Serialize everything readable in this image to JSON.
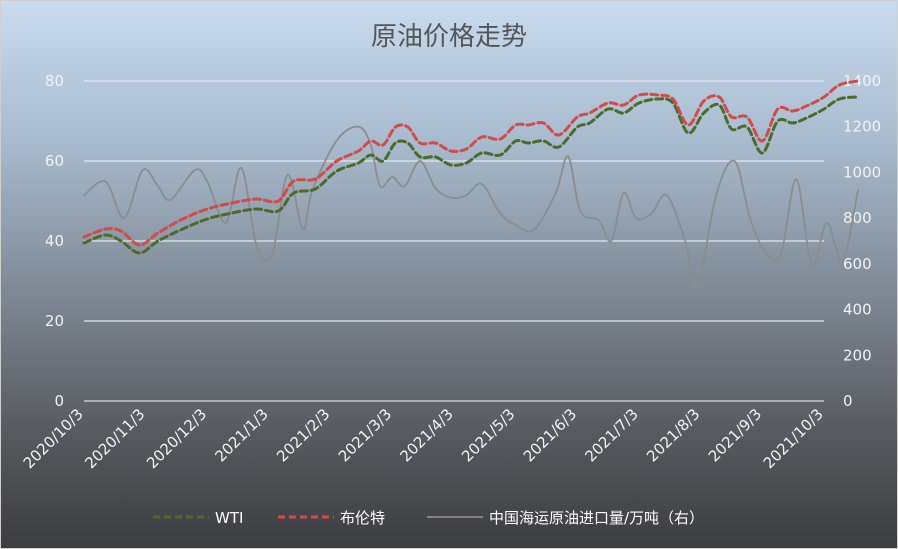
{
  "chart_data": {
    "type": "line",
    "title": "原油价格走势",
    "x_labels": [
      "2020/10/3",
      "2020/11/3",
      "2020/12/3",
      "2021/1/3",
      "2021/2/3",
      "2021/3/3",
      "2021/4/3",
      "2021/5/3",
      "2021/6/3",
      "2021/7/3",
      "2021/8/3",
      "2021/9/3",
      "2021/10/3"
    ],
    "y_left": {
      "ylim": [
        0,
        80
      ],
      "ticks": [
        0,
        20,
        40,
        60,
        80
      ]
    },
    "y_right": {
      "ylim": [
        0,
        1400
      ],
      "ticks": [
        0,
        200,
        400,
        600,
        800,
        1000,
        1200,
        1400
      ]
    },
    "grid": true,
    "legend_position": "bottom",
    "series": [
      {
        "name": "WTI",
        "axis": "left",
        "style": "dashed",
        "color": "#4a6b2a",
        "points": [
          [
            0,
            39.5
          ],
          [
            0.35,
            41.5
          ],
          [
            0.6,
            40
          ],
          [
            0.9,
            37
          ],
          [
            1.2,
            40
          ],
          [
            1.6,
            43
          ],
          [
            2,
            45.5
          ],
          [
            2.4,
            47
          ],
          [
            2.8,
            48
          ],
          [
            3.15,
            47.5
          ],
          [
            3.4,
            52
          ],
          [
            3.75,
            53
          ],
          [
            4.1,
            57.5
          ],
          [
            4.45,
            59.5
          ],
          [
            4.65,
            61.5
          ],
          [
            4.85,
            60
          ],
          [
            5.05,
            64.5
          ],
          [
            5.25,
            64.5
          ],
          [
            5.45,
            61
          ],
          [
            5.7,
            61
          ],
          [
            5.95,
            59
          ],
          [
            6.2,
            59.5
          ],
          [
            6.45,
            62
          ],
          [
            6.75,
            61.5
          ],
          [
            7,
            65
          ],
          [
            7.2,
            64.5
          ],
          [
            7.45,
            65
          ],
          [
            7.7,
            63.5
          ],
          [
            8,
            68.5
          ],
          [
            8.2,
            69.5
          ],
          [
            8.5,
            73
          ],
          [
            8.75,
            72
          ],
          [
            9,
            74.5
          ],
          [
            9.3,
            75.5
          ],
          [
            9.55,
            74.5
          ],
          [
            9.8,
            67
          ],
          [
            10.05,
            72
          ],
          [
            10.3,
            74
          ],
          [
            10.5,
            68
          ],
          [
            10.75,
            68.5
          ],
          [
            11,
            62
          ],
          [
            11.25,
            70
          ],
          [
            11.5,
            69.5
          ],
          [
            11.75,
            71
          ],
          [
            12,
            73
          ],
          [
            12.25,
            75.5
          ],
          [
            12.55,
            76
          ]
        ]
      },
      {
        "name": "布伦特",
        "axis": "left",
        "style": "dashed",
        "color": "#d24b4b",
        "points": [
          [
            0,
            41
          ],
          [
            0.35,
            43
          ],
          [
            0.6,
            42.5
          ],
          [
            0.9,
            39
          ],
          [
            1.2,
            42
          ],
          [
            1.6,
            45.5
          ],
          [
            2,
            48
          ],
          [
            2.4,
            49.5
          ],
          [
            2.8,
            50.5
          ],
          [
            3.15,
            50
          ],
          [
            3.4,
            55
          ],
          [
            3.75,
            55.5
          ],
          [
            4.1,
            60
          ],
          [
            4.45,
            62.5
          ],
          [
            4.65,
            65
          ],
          [
            4.85,
            64
          ],
          [
            5.05,
            68.5
          ],
          [
            5.25,
            68.5
          ],
          [
            5.45,
            64.5
          ],
          [
            5.7,
            64.5
          ],
          [
            5.95,
            62.5
          ],
          [
            6.2,
            63
          ],
          [
            6.45,
            66
          ],
          [
            6.75,
            65.5
          ],
          [
            7,
            69
          ],
          [
            7.2,
            69
          ],
          [
            7.45,
            69.5
          ],
          [
            7.7,
            66.5
          ],
          [
            8,
            71
          ],
          [
            8.2,
            72
          ],
          [
            8.5,
            74.5
          ],
          [
            8.75,
            74
          ],
          [
            9,
            76.5
          ],
          [
            9.3,
            76.5
          ],
          [
            9.55,
            75.5
          ],
          [
            9.8,
            69
          ],
          [
            10.05,
            75
          ],
          [
            10.3,
            76
          ],
          [
            10.5,
            71
          ],
          [
            10.75,
            71
          ],
          [
            11,
            65
          ],
          [
            11.25,
            73
          ],
          [
            11.5,
            72.5
          ],
          [
            11.75,
            74
          ],
          [
            12,
            76
          ],
          [
            12.25,
            79
          ],
          [
            12.55,
            80
          ]
        ]
      },
      {
        "name": "中国海运原油进口量/万吨（右）",
        "axis": "right",
        "style": "solid",
        "color": "#8c8c8c",
        "points": [
          [
            0,
            900
          ],
          [
            0.35,
            960
          ],
          [
            0.65,
            800
          ],
          [
            0.95,
            1010
          ],
          [
            1.2,
            940
          ],
          [
            1.4,
            880
          ],
          [
            1.8,
            1010
          ],
          [
            2,
            960
          ],
          [
            2.3,
            780
          ],
          [
            2.55,
            1020
          ],
          [
            2.8,
            680
          ],
          [
            3.05,
            640
          ],
          [
            3.3,
            990
          ],
          [
            3.55,
            750
          ],
          [
            3.7,
            920
          ],
          [
            4.1,
            1140
          ],
          [
            4.45,
            1200
          ],
          [
            4.65,
            1120
          ],
          [
            4.8,
            940
          ],
          [
            5,
            980
          ],
          [
            5.2,
            940
          ],
          [
            5.45,
            1050
          ],
          [
            5.7,
            930
          ],
          [
            5.95,
            890
          ],
          [
            6.2,
            900
          ],
          [
            6.45,
            950
          ],
          [
            6.75,
            820
          ],
          [
            7,
            770
          ],
          [
            7.3,
            750
          ],
          [
            7.65,
            910
          ],
          [
            7.85,
            1070
          ],
          [
            8.05,
            830
          ],
          [
            8.35,
            790
          ],
          [
            8.55,
            700
          ],
          [
            8.75,
            910
          ],
          [
            8.95,
            800
          ],
          [
            9.2,
            820
          ],
          [
            9.45,
            900
          ],
          [
            9.75,
            700
          ],
          [
            9.95,
            500
          ],
          [
            10.25,
            900
          ],
          [
            10.55,
            1050
          ],
          [
            10.8,
            800
          ],
          [
            11.05,
            650
          ],
          [
            11.3,
            640
          ],
          [
            11.55,
            970
          ],
          [
            11.8,
            600
          ],
          [
            12.05,
            780
          ],
          [
            12.3,
            610
          ],
          [
            12.55,
            920
          ]
        ]
      }
    ]
  }
}
